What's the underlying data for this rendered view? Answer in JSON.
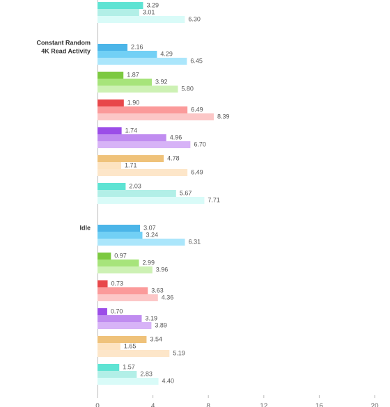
{
  "chart_data": {
    "type": "bar",
    "orientation": "horizontal",
    "xlim": [
      0,
      20
    ],
    "xticks": [
      0,
      4,
      8,
      12,
      16,
      20
    ],
    "groups": [
      {
        "subgroups": [
          {
            "colors": [
              "#5ee3d3",
              "#b2efe7",
              "#d9fbf8"
            ],
            "values": [
              3.29,
              3.01,
              6.3
            ],
            "value_labels": [
              "3.29",
              "3.01",
              "6.30"
            ]
          }
        ]
      },
      {
        "label": [
          "Constant Random",
          "4K Read Activity"
        ],
        "subgroups": [
          {
            "colors": [
              "#4bb5e8",
              "#72d0f5",
              "#abe6fb"
            ],
            "values": [
              2.16,
              4.29,
              6.45
            ],
            "value_labels": [
              "2.16",
              "4.29",
              "6.45"
            ]
          },
          {
            "colors": [
              "#7cc940",
              "#a7e47b",
              "#cdf1b4"
            ],
            "values": [
              1.87,
              3.92,
              5.8
            ],
            "value_labels": [
              "1.87",
              "3.92",
              "5.80"
            ]
          },
          {
            "colors": [
              "#e8474a",
              "#fb9a9a",
              "#fcc7c7"
            ],
            "values": [
              1.9,
              6.49,
              8.39
            ],
            "value_labels": [
              "1.90",
              "6.49",
              "8.39"
            ]
          },
          {
            "colors": [
              "#9b4de8",
              "#c08cf0",
              "#d7b3f7"
            ],
            "values": [
              1.74,
              4.96,
              6.7
            ],
            "value_labels": [
              "1.74",
              "4.96",
              "6.70"
            ]
          },
          {
            "colors": [
              "#efc27a",
              "#fde3c0",
              "#fde6c9"
            ],
            "values": [
              4.78,
              1.71,
              6.49
            ],
            "value_labels": [
              "4.78",
              "1.71",
              "6.49"
            ]
          },
          {
            "colors": [
              "#5ee3d3",
              "#b2efe7",
              "#d9fbf8"
            ],
            "values": [
              2.03,
              5.67,
              7.71
            ],
            "value_labels": [
              "2.03",
              "5.67",
              "7.71"
            ]
          }
        ]
      },
      {
        "label": [
          "Idle"
        ],
        "subgroups": [
          {
            "colors": [
              "#4bb5e8",
              "#72d0f5",
              "#abe6fb"
            ],
            "values": [
              3.07,
              3.24,
              6.31
            ],
            "value_labels": [
              "3.07",
              "3.24",
              "6.31"
            ]
          },
          {
            "colors": [
              "#7cc940",
              "#a7e47b",
              "#cdf1b4"
            ],
            "values": [
              0.97,
              2.99,
              3.96
            ],
            "value_labels": [
              "0.97",
              "2.99",
              "3.96"
            ]
          },
          {
            "colors": [
              "#e8474a",
              "#fb9a9a",
              "#fcc7c7"
            ],
            "values": [
              0.73,
              3.63,
              4.36
            ],
            "value_labels": [
              "0.73",
              "3.63",
              "4.36"
            ]
          },
          {
            "colors": [
              "#9b4de8",
              "#c08cf0",
              "#d7b3f7"
            ],
            "values": [
              0.7,
              3.19,
              3.89
            ],
            "value_labels": [
              "0.70",
              "3.19",
              "3.89"
            ]
          },
          {
            "colors": [
              "#efc27a",
              "#fde3c0",
              "#fde6c9"
            ],
            "values": [
              3.54,
              1.65,
              5.19
            ],
            "value_labels": [
              "3.54",
              "1.65",
              "5.19"
            ]
          },
          {
            "colors": [
              "#5ee3d3",
              "#b2efe7",
              "#d9fbf8"
            ],
            "values": [
              1.57,
              2.83,
              4.4
            ],
            "value_labels": [
              "1.57",
              "2.83",
              "4.40"
            ]
          }
        ]
      }
    ]
  }
}
